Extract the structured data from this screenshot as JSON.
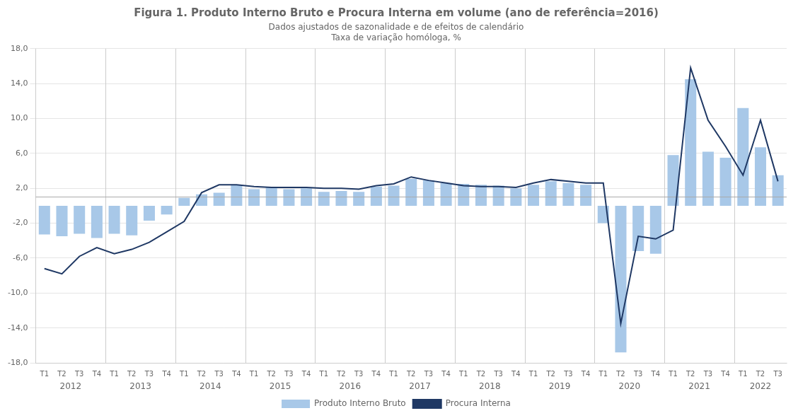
{
  "chart_data": {
    "type": "bar",
    "title": "Figura 1. Produto Interno Bruto e Procura Interna em volume (ano de referência=2016)",
    "subtitle": [
      "Dados ajustados de sazonalidade e de efeitos de calendário",
      "Taxa de variação homóloga, %"
    ],
    "categories": [
      "T1",
      "T2",
      "T3",
      "T4",
      "T1",
      "T2",
      "T3",
      "T4",
      "T1",
      "T2",
      "T3",
      "T4",
      "T1",
      "T2",
      "T3",
      "T4",
      "T1",
      "T2",
      "T3",
      "T4",
      "T1",
      "T2",
      "T3",
      "T4",
      "T1",
      "T2",
      "T3",
      "T4",
      "T1",
      "T2",
      "T3",
      "T4",
      "T1",
      "T2",
      "T3",
      "T4",
      "T1",
      "T2",
      "T3",
      "T4",
      "T1",
      "T2",
      "T3"
    ],
    "years": [
      2012,
      2012,
      2012,
      2012,
      2013,
      2013,
      2013,
      2013,
      2014,
      2014,
      2014,
      2014,
      2015,
      2015,
      2015,
      2015,
      2016,
      2016,
      2016,
      2016,
      2017,
      2017,
      2017,
      2017,
      2018,
      2018,
      2018,
      2018,
      2019,
      2019,
      2019,
      2019,
      2020,
      2020,
      2020,
      2020,
      2021,
      2021,
      2021,
      2021,
      2022,
      2022,
      2022
    ],
    "series": [
      {
        "name": "Produto Interno Bruto",
        "type": "bar",
        "color": "#a8c8e8",
        "values": [
          -3.3,
          -3.5,
          -3.2,
          -3.7,
          -3.2,
          -3.4,
          -1.7,
          -1.0,
          0.9,
          1.3,
          1.5,
          2.4,
          1.9,
          2.1,
          1.9,
          2.0,
          1.6,
          1.7,
          1.6,
          2.2,
          2.3,
          3.1,
          2.9,
          2.6,
          2.5,
          2.4,
          2.3,
          2.0,
          2.4,
          2.8,
          2.6,
          2.4,
          -2.0,
          -16.8,
          -5.2,
          -5.5,
          5.8,
          14.5,
          6.2,
          5.5,
          11.2,
          6.7,
          3.5
        ]
      },
      {
        "name": "Procura Interna",
        "type": "line",
        "color": "#1f3864",
        "marker": "none",
        "values": [
          -7.2,
          -7.8,
          -5.8,
          -4.8,
          -5.5,
          -5.0,
          -4.2,
          -3.0,
          -1.8,
          1.5,
          2.4,
          2.4,
          2.2,
          2.1,
          2.1,
          2.1,
          2.0,
          2.0,
          1.9,
          2.3,
          2.5,
          3.3,
          2.9,
          2.6,
          2.3,
          2.2,
          2.2,
          2.1,
          2.6,
          3.0,
          2.8,
          2.6,
          2.6,
          -13.5,
          -3.5,
          -3.8,
          -2.8,
          15.8,
          9.8,
          6.8,
          3.5,
          9.8,
          2.8
        ]
      }
    ],
    "reference_line": {
      "y": 1.0,
      "color": "#aaaaaa"
    },
    "ylim": [
      -18.0,
      18.0
    ],
    "yticks": [
      {
        "value": -18.0,
        "label": "-18,0"
      },
      {
        "value": -14.0,
        "label": "-14,0"
      },
      {
        "value": -10.0,
        "label": "-10,0"
      },
      {
        "value": -6.0,
        "label": "-6,0"
      },
      {
        "value": -2.0,
        "label": "-2,0"
      },
      {
        "value": 2.0,
        "label": "2,0"
      },
      {
        "value": 6.0,
        "label": "6,0"
      },
      {
        "value": 10.0,
        "label": "10,0"
      },
      {
        "value": 14.0,
        "label": "14,0"
      },
      {
        "value": 18.0,
        "label": "18,0"
      }
    ],
    "grid": true,
    "legend": "bottom"
  }
}
